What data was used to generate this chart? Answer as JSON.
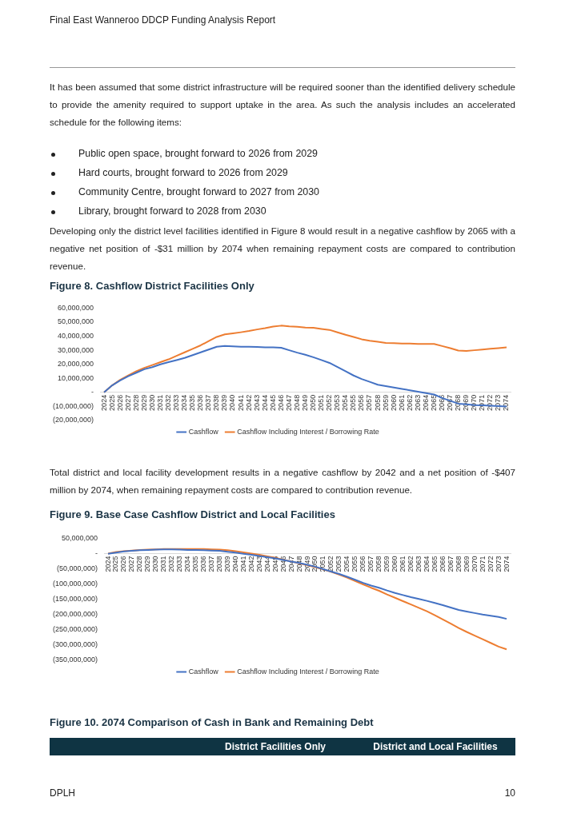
{
  "chart_data": [
    {
      "type": "line",
      "title": "Figure 8. Cashflow District Facilities Only",
      "annotations": [
        "Final East Wanneroo DDCP Funding Analysis Report",
        "It has been assumed that some district infrastructure will be required sooner than the identified delivery schedule to provide the amenity required to support uptake in the area. As such the analysis includes an accelerated schedule for the following items:",
        "Public open space, brought forward to 2026 from 2029",
        "Hard courts, brought forward to 2026 from 2029",
        "Community Centre, brought forward to 2027 from 2030",
        "Library, brought forward to 2028 from 2030",
        "Developing only the district level facilities identified in Figure 8 would result in a negative cashflow by 2065 with a negative net position of -$31 million by 2074 when remaining repayment costs are compared to contribution revenue."
      ],
      "categories": [
        "2024",
        "2025",
        "2026",
        "2027",
        "2028",
        "2029",
        "2030",
        "2031",
        "2032",
        "2033",
        "2034",
        "2035",
        "2036",
        "2037",
        "2038",
        "2039",
        "2040",
        "2041",
        "2042",
        "2043",
        "2044",
        "2045",
        "2046",
        "2047",
        "2048",
        "2049",
        "2050",
        "2051",
        "2052",
        "2053",
        "2054",
        "2055",
        "2056",
        "2057",
        "2058",
        "2059",
        "2060",
        "2061",
        "2062",
        "2063",
        "2064",
        "2065",
        "2066",
        "2067",
        "2068",
        "2069",
        "2070",
        "2071",
        "2072",
        "2073",
        "2074"
      ],
      "series": [
        {
          "name": "Cashflow",
          "color": "#4472c4",
          "values": [
            0,
            5000000,
            8500000,
            11500000,
            14000000,
            16500000,
            18000000,
            20000000,
            21500000,
            23000000,
            24500000,
            26500000,
            28500000,
            30500000,
            32500000,
            33000000,
            32800000,
            32500000,
            32500000,
            32300000,
            32000000,
            32000000,
            31800000,
            30000000,
            28300000,
            26800000,
            25000000,
            23000000,
            21000000,
            18000000,
            15000000,
            12000000,
            9500000,
            7500000,
            5500000,
            4500000,
            3500000,
            2500000,
            1500000,
            500000,
            -500000,
            -1500000,
            -4000000,
            -6000000,
            -8000000,
            -8500000,
            -9000000,
            -9200000,
            -9500000,
            -9800000,
            -10000000
          ]
        },
        {
          "name": "Cashflow Including Interest / Borrowing Rate",
          "color": "#ed7d31",
          "values": [
            0,
            5000000,
            9000000,
            12000000,
            15000000,
            17500000,
            19500000,
            21500000,
            23500000,
            26000000,
            28500000,
            31000000,
            33500000,
            36500000,
            39500000,
            41300000,
            42000000,
            42800000,
            43700000,
            44800000,
            45700000,
            46800000,
            47500000,
            47000000,
            46700000,
            46200000,
            46000000,
            45200000,
            44500000,
            42700000,
            41000000,
            39500000,
            37800000,
            36700000,
            36000000,
            35200000,
            35000000,
            34800000,
            34700000,
            34500000,
            34500000,
            34500000,
            33000000,
            31500000,
            29800000,
            29500000,
            30000000,
            30500000,
            31000000,
            31500000,
            32000000
          ]
        }
      ],
      "ylim": [
        -20000000,
        60000000
      ],
      "yticks": [
        {
          "value": -20000000,
          "label": "(20,000,000)"
        },
        {
          "value": -10000000,
          "label": "(10,000,000)"
        },
        {
          "value": 0,
          "label": "-"
        },
        {
          "value": 10000000,
          "label": "10,000,000"
        },
        {
          "value": 20000000,
          "label": "20,000,000"
        },
        {
          "value": 30000000,
          "label": "30,000,000"
        },
        {
          "value": 40000000,
          "label": "40,000,000"
        },
        {
          "value": 50000000,
          "label": "50,000,000"
        },
        {
          "value": 60000000,
          "label": "60,000,000"
        }
      ],
      "grid": false,
      "legend": "bottom",
      "marker": "none",
      "line_style": "solid"
    },
    {
      "type": "line",
      "title": "Figure 9. Base Case Cashflow District and Local Facilities",
      "annotations": [
        "Total district and local facility development results in a negative cashflow by 2042 and a net position of -$407 million by 2074, when remaining repayment costs are compared to contribution revenue.",
        "Figure 10. 2074 Comparison of Cash in Bank and Remaining Debt",
        "District Facilities Only",
        "District and Local Facilities",
        "DPLH",
        "10"
      ],
      "categories": [
        "2024",
        "2025",
        "2026",
        "2027",
        "2028",
        "2029",
        "2030",
        "2031",
        "2032",
        "2033",
        "2034",
        "2035",
        "2036",
        "2037",
        "2038",
        "2039",
        "2040",
        "2041",
        "2042",
        "2043",
        "2044",
        "2045",
        "2046",
        "2047",
        "2048",
        "2049",
        "2050",
        "2051",
        "2052",
        "2053",
        "2054",
        "2055",
        "2056",
        "2057",
        "2058",
        "2059",
        "2060",
        "2061",
        "2062",
        "2063",
        "2064",
        "2065",
        "2066",
        "2067",
        "2068",
        "2069",
        "2070",
        "2071",
        "2072",
        "2073",
        "2074"
      ],
      "series": [
        {
          "name": "Cashflow",
          "color": "#4472c4",
          "values": [
            -1000000,
            3000000,
            7000000,
            9000000,
            11000000,
            12000000,
            13000000,
            14000000,
            14000000,
            13000000,
            12000000,
            12000000,
            11000000,
            10000000,
            9000000,
            6000000,
            3000000,
            -1000000,
            -4000000,
            -8000000,
            -12000000,
            -16000000,
            -21000000,
            -26000000,
            -31000000,
            -37000000,
            -43000000,
            -51000000,
            -59000000,
            -67000000,
            -76000000,
            -86000000,
            -96000000,
            -105000000,
            -112000000,
            -121000000,
            -129000000,
            -136000000,
            -143000000,
            -149000000,
            -155000000,
            -162000000,
            -169000000,
            -177000000,
            -185000000,
            -190000000,
            -195000000,
            -200000000,
            -204000000,
            -208000000,
            -214000000
          ]
        },
        {
          "name": "Cashflow Including Interest / Borrowing Rate",
          "color": "#ed7d31",
          "values": [
            0,
            5000000,
            8000000,
            10000000,
            12000000,
            13000000,
            14000000,
            15000000,
            15000000,
            15000000,
            15000000,
            15000000,
            15000000,
            14000000,
            13000000,
            11000000,
            8000000,
            4000000,
            0,
            -4000000,
            -9000000,
            -14000000,
            -20000000,
            -26000000,
            -32000000,
            -38000000,
            -45000000,
            -52000000,
            -60000000,
            -69000000,
            -79000000,
            -90000000,
            -101000000,
            -112000000,
            -122000000,
            -134000000,
            -145000000,
            -156000000,
            -167000000,
            -178000000,
            -189000000,
            -202000000,
            -216000000,
            -230000000,
            -244000000,
            -257000000,
            -269000000,
            -281000000,
            -293000000,
            -305000000,
            -314000000
          ]
        }
      ],
      "ylim": [
        -350000000,
        50000000
      ],
      "yticks": [
        {
          "value": -350000000,
          "label": "(350,000,000)"
        },
        {
          "value": -300000000,
          "label": "(300,000,000)"
        },
        {
          "value": -250000000,
          "label": "(250,000,000)"
        },
        {
          "value": -200000000,
          "label": "(200,000,000)"
        },
        {
          "value": -150000000,
          "label": "(150,000,000)"
        },
        {
          "value": -100000000,
          "label": "(100,000,000)"
        },
        {
          "value": -50000000,
          "label": "(50,000,000)"
        },
        {
          "value": 0,
          "label": "-"
        },
        {
          "value": 50000000,
          "label": "50,000,000"
        }
      ],
      "grid": false,
      "legend": "bottom",
      "marker": "none",
      "line_style": "solid"
    }
  ]
}
